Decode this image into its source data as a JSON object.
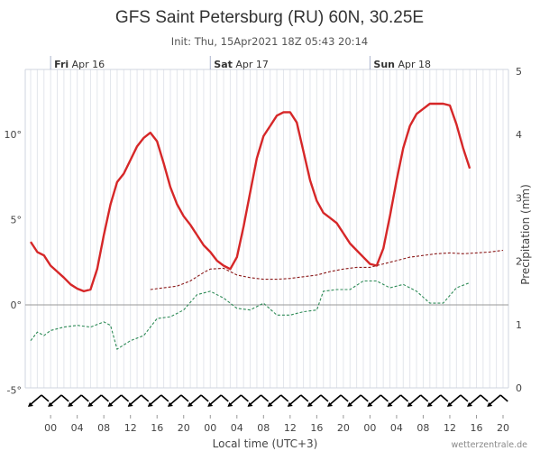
{
  "chart_data": {
    "type": "line",
    "title": "GFS Saint Petersburg (RU) 60N, 30.25E",
    "subtitle": "Init: Thu, 15Apr2021 18Z 05:43 20:14",
    "xlabel": "Local time (UTC+3)",
    "ylabel_right": "Precipitation (mm)",
    "credit": "wetterzentrale.de",
    "days": [
      {
        "name": "Fri",
        "date": "Apr 16",
        "hour": 0
      },
      {
        "name": "Sat",
        "date": "Apr 17",
        "hour": 24
      },
      {
        "name": "Sun",
        "date": "Apr 18",
        "hour": 48
      }
    ],
    "x_ticks": [
      {
        "hour": 0,
        "label": "00"
      },
      {
        "hour": 4,
        "label": "04"
      },
      {
        "hour": 8,
        "label": "08"
      },
      {
        "hour": 12,
        "label": "12"
      },
      {
        "hour": 16,
        "label": "16"
      },
      {
        "hour": 20,
        "label": "20"
      },
      {
        "hour": 24,
        "label": "00"
      },
      {
        "hour": 28,
        "label": "04"
      },
      {
        "hour": 32,
        "label": "08"
      },
      {
        "hour": 36,
        "label": "12"
      },
      {
        "hour": 40,
        "label": "16"
      },
      {
        "hour": 44,
        "label": "20"
      },
      {
        "hour": 48,
        "label": "00"
      },
      {
        "hour": 52,
        "label": "04"
      },
      {
        "hour": 56,
        "label": "08"
      },
      {
        "hour": 60,
        "label": "12"
      },
      {
        "hour": 64,
        "label": "16"
      },
      {
        "hour": 68,
        "label": "20"
      }
    ],
    "xlim": [
      -3,
      68
    ],
    "ylim_left": [
      -5,
      14
    ],
    "y_ticks_left": [
      {
        "value": -5,
        "label": "-5°"
      },
      {
        "value": 0,
        "label": "0°"
      },
      {
        "value": 5,
        "label": "5°"
      },
      {
        "value": 10,
        "label": "10°"
      }
    ],
    "ylim_right": [
      0,
      5
    ],
    "y_ticks_right": [
      {
        "value": 0,
        "label": "0"
      },
      {
        "value": 1,
        "label": "1"
      },
      {
        "value": 2,
        "label": "2"
      },
      {
        "value": 3,
        "label": "3"
      },
      {
        "value": 4,
        "label": "4"
      },
      {
        "value": 5,
        "label": "5"
      }
    ],
    "series": [
      {
        "style": "solid",
        "color": "#d62728",
        "axis": "left",
        "points": [
          [
            -3,
            3.7
          ],
          [
            -2,
            3.1
          ],
          [
            -1,
            2.9
          ],
          [
            0,
            2.3
          ],
          [
            1,
            1.95
          ],
          [
            2,
            1.6
          ],
          [
            3,
            1.2
          ],
          [
            4,
            0.95
          ],
          [
            5,
            0.8
          ],
          [
            6,
            0.9
          ],
          [
            7,
            2.1
          ],
          [
            8,
            4.1
          ],
          [
            9,
            5.9
          ],
          [
            10,
            7.2
          ],
          [
            11,
            7.7
          ],
          [
            12,
            8.5
          ],
          [
            13,
            9.3
          ],
          [
            14,
            9.8
          ],
          [
            15,
            10.1
          ],
          [
            16,
            9.6
          ],
          [
            17,
            8.3
          ],
          [
            18,
            6.9
          ],
          [
            19,
            5.9
          ],
          [
            20,
            5.2
          ],
          [
            21,
            4.7
          ],
          [
            22,
            4.1
          ],
          [
            23,
            3.5
          ],
          [
            24,
            3.1
          ],
          [
            25,
            2.6
          ],
          [
            26,
            2.3
          ],
          [
            27,
            2.1
          ],
          [
            28,
            2.8
          ],
          [
            29,
            4.6
          ],
          [
            30,
            6.6
          ],
          [
            31,
            8.6
          ],
          [
            32,
            9.9
          ],
          [
            33,
            10.5
          ],
          [
            34,
            11.1
          ],
          [
            35,
            11.3
          ],
          [
            36,
            11.3
          ],
          [
            37,
            10.7
          ],
          [
            38,
            9.0
          ],
          [
            39,
            7.3
          ],
          [
            40,
            6.1
          ],
          [
            41,
            5.4
          ],
          [
            42,
            5.1
          ],
          [
            43,
            4.8
          ],
          [
            44,
            4.2
          ],
          [
            45,
            3.6
          ],
          [
            46,
            3.2
          ],
          [
            47,
            2.8
          ],
          [
            48,
            2.4
          ],
          [
            49,
            2.3
          ],
          [
            50,
            3.3
          ],
          [
            51,
            5.2
          ],
          [
            52,
            7.3
          ],
          [
            53,
            9.2
          ],
          [
            54,
            10.5
          ],
          [
            55,
            11.2
          ],
          [
            56,
            11.5
          ],
          [
            57,
            11.8
          ],
          [
            58,
            11.8
          ],
          [
            59,
            11.8
          ],
          [
            60,
            11.7
          ],
          [
            61,
            10.6
          ],
          [
            62,
            9.2
          ],
          [
            63,
            8.0
          ]
        ]
      },
      {
        "style": "dashed",
        "color": "#8b1a1a",
        "axis": "left",
        "points": [
          [
            15,
            0.9
          ],
          [
            17,
            1.0
          ],
          [
            19,
            1.1
          ],
          [
            21,
            1.4
          ],
          [
            23,
            1.9
          ],
          [
            24,
            2.1
          ],
          [
            26,
            2.15
          ],
          [
            28,
            1.75
          ],
          [
            30,
            1.6
          ],
          [
            32,
            1.5
          ],
          [
            34,
            1.5
          ],
          [
            36,
            1.55
          ],
          [
            38,
            1.65
          ],
          [
            40,
            1.75
          ],
          [
            42,
            1.95
          ],
          [
            44,
            2.1
          ],
          [
            46,
            2.2
          ],
          [
            48,
            2.2
          ],
          [
            50,
            2.4
          ],
          [
            52,
            2.6
          ],
          [
            54,
            2.8
          ],
          [
            56,
            2.9
          ],
          [
            58,
            3.0
          ],
          [
            60,
            3.05
          ],
          [
            62,
            3.0
          ],
          [
            64,
            3.05
          ],
          [
            66,
            3.1
          ],
          [
            68,
            3.2
          ]
        ]
      },
      {
        "style": "dashed",
        "color": "#2e8b57",
        "axis": "left",
        "points": [
          [
            -3,
            -2.1
          ],
          [
            -2,
            -1.6
          ],
          [
            -1,
            -1.8
          ],
          [
            0,
            -1.5
          ],
          [
            2,
            -1.3
          ],
          [
            4,
            -1.2
          ],
          [
            6,
            -1.3
          ],
          [
            8,
            -1.0
          ],
          [
            9,
            -1.2
          ],
          [
            10,
            -2.6
          ],
          [
            12,
            -2.1
          ],
          [
            14,
            -1.8
          ],
          [
            16,
            -0.8
          ],
          [
            18,
            -0.7
          ],
          [
            20,
            -0.3
          ],
          [
            22,
            0.6
          ],
          [
            24,
            0.8
          ],
          [
            26,
            0.4
          ],
          [
            28,
            -0.2
          ],
          [
            30,
            -0.3
          ],
          [
            32,
            0.1
          ],
          [
            34,
            -0.6
          ],
          [
            36,
            -0.6
          ],
          [
            38,
            -0.4
          ],
          [
            40,
            -0.3
          ],
          [
            41,
            0.8
          ],
          [
            43,
            0.9
          ],
          [
            45,
            0.9
          ],
          [
            47,
            1.4
          ],
          [
            49,
            1.4
          ],
          [
            51,
            1.0
          ],
          [
            53,
            1.2
          ],
          [
            55,
            0.8
          ],
          [
            57,
            0.1
          ],
          [
            59,
            0.1
          ],
          [
            61,
            1.0
          ],
          [
            63,
            1.3
          ]
        ]
      }
    ],
    "wind_barbs": [
      {
        "hour": -3
      },
      {
        "hour": 0
      },
      {
        "hour": 3
      },
      {
        "hour": 6
      },
      {
        "hour": 9
      },
      {
        "hour": 12
      },
      {
        "hour": 15
      },
      {
        "hour": 18
      },
      {
        "hour": 21
      },
      {
        "hour": 24
      },
      {
        "hour": 27
      },
      {
        "hour": 30
      },
      {
        "hour": 33
      },
      {
        "hour": 36
      },
      {
        "hour": 39
      },
      {
        "hour": 42
      },
      {
        "hour": 45
      },
      {
        "hour": 48
      },
      {
        "hour": 51
      },
      {
        "hour": 54
      },
      {
        "hour": 57
      },
      {
        "hour": 60
      },
      {
        "hour": 63
      },
      {
        "hour": 66
      }
    ],
    "colors": {
      "temperature": "#d62728",
      "grid": "#e3e6ec",
      "zero_line": "#999999",
      "day_separator": "#aab3cc"
    },
    "grid": true
  }
}
